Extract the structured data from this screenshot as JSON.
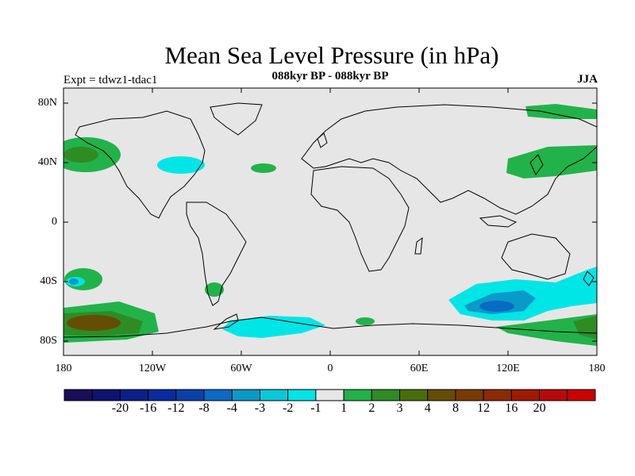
{
  "title": "Mean Sea Level Pressure (in hPa)",
  "subtitle": "088kyr BP - 088kyr BP",
  "left_label": "Expt = tdwz1-tdac1",
  "right_label": "JJA",
  "y_ticks": [
    "80N",
    "40N",
    "0",
    "40S",
    "80S"
  ],
  "x_ticks": [
    "180",
    "120W",
    "60W",
    "0",
    "60E",
    "120E",
    "180"
  ],
  "colorbar": {
    "colors": [
      "#1a0d5a",
      "#0d1470",
      "#0b1f8a",
      "#0a2aa0",
      "#0a41a8",
      "#0a6bc2",
      "#0a9ac8",
      "#09c8d8",
      "#00e5e5",
      "#e6e6e6",
      "#22b24a",
      "#2e8c23",
      "#4a6d0c",
      "#654d05",
      "#7a3a04",
      "#8c2a02",
      "#a01a01",
      "#b80a0a",
      "#cc0000"
    ],
    "labels": [
      "-20",
      "-16",
      "-12",
      "-8",
      "-4",
      "-3",
      "-2",
      "-1",
      "1",
      "2",
      "3",
      "4",
      "8",
      "12",
      "16",
      "20"
    ]
  },
  "colors": {
    "background": "#e6e6e6",
    "land_outline": "#000000",
    "anomaly_pos_1": "#22b24a",
    "anomaly_pos_2": "#2e8c23",
    "anomaly_pos_3": "#654d05",
    "anomaly_neg_1": "#00e5e5",
    "anomaly_neg_2": "#0a9ac8"
  }
}
